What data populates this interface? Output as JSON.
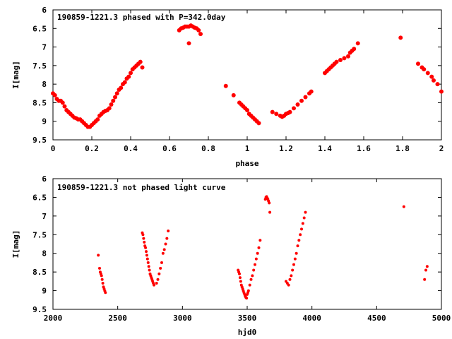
{
  "chart_data": [
    {
      "type": "scatter",
      "title": "190859-1221.3 phased with P=342.0day",
      "xlabel": "phase",
      "ylabel": "I[mag]",
      "xlim": [
        0,
        2
      ],
      "ylim": [
        9.5,
        6
      ],
      "y_inverted": true,
      "grid": false,
      "legend": "none",
      "x_ticks": [
        "0",
        "0.2",
        "0.4",
        "0.6",
        "0.8",
        "1",
        "1.2",
        "1.4",
        "1.6",
        "1.8",
        "2"
      ],
      "y_ticks": [
        "6",
        "6.5",
        "7",
        "7.5",
        "8",
        "8.5",
        "9",
        "9.5"
      ],
      "marker_color": "#ff0000",
      "series": [
        {
          "x": [
            0.0,
            0.01,
            0.02,
            0.03,
            0.04,
            0.05,
            0.06,
            0.07,
            0.08,
            0.09,
            0.1,
            0.11,
            0.12,
            0.13,
            0.14,
            0.15,
            0.16,
            0.17,
            0.18,
            0.19,
            0.2,
            0.21,
            0.22,
            0.23,
            0.24,
            0.25,
            0.26,
            0.27,
            0.28,
            0.29,
            0.3,
            0.31,
            0.32,
            0.33,
            0.34,
            0.35,
            0.36,
            0.37,
            0.38,
            0.39,
            0.4,
            0.41,
            0.42,
            0.43,
            0.44,
            0.45,
            0.46,
            0.65,
            0.66,
            0.67,
            0.68,
            0.69,
            0.7,
            0.71,
            0.72,
            0.73,
            0.74,
            0.75,
            0.76,
            0.7,
            0.89,
            0.93,
            0.96,
            0.97,
            0.98,
            0.99,
            1.0,
            1.01,
            1.02,
            1.03,
            1.04,
            1.05,
            1.06,
            1.13,
            1.15,
            1.17,
            1.18,
            1.19,
            1.2,
            1.21,
            1.22,
            1.24,
            1.26,
            1.28,
            1.3,
            1.32,
            1.33,
            1.4,
            1.41,
            1.42,
            1.43,
            1.44,
            1.45,
            1.46,
            1.48,
            1.5,
            1.52,
            1.53,
            1.54,
            1.55,
            1.57,
            1.79,
            1.88,
            1.9,
            1.91,
            1.93,
            1.95,
            1.96,
            1.98,
            2.0
          ],
          "y": [
            8.25,
            8.3,
            8.4,
            8.45,
            8.45,
            8.5,
            8.6,
            8.7,
            8.75,
            8.8,
            8.85,
            8.9,
            8.92,
            8.95,
            8.95,
            9.0,
            9.05,
            9.1,
            9.15,
            9.15,
            9.1,
            9.05,
            9.0,
            8.95,
            8.85,
            8.8,
            8.75,
            8.72,
            8.7,
            8.65,
            8.55,
            8.45,
            8.35,
            8.25,
            8.15,
            8.1,
            8.0,
            7.95,
            7.85,
            7.8,
            7.7,
            7.6,
            7.55,
            7.5,
            7.45,
            7.4,
            7.55,
            6.55,
            6.5,
            6.48,
            6.45,
            6.45,
            6.45,
            6.42,
            6.45,
            6.48,
            6.5,
            6.55,
            6.65,
            6.9,
            8.05,
            8.3,
            8.5,
            8.55,
            8.6,
            8.65,
            8.7,
            8.8,
            8.85,
            8.9,
            8.95,
            9.0,
            9.05,
            8.75,
            8.8,
            8.85,
            8.88,
            8.85,
            8.8,
            8.78,
            8.75,
            8.65,
            8.55,
            8.45,
            8.35,
            8.25,
            8.2,
            7.7,
            7.65,
            7.6,
            7.55,
            7.5,
            7.45,
            7.4,
            7.35,
            7.3,
            7.25,
            7.15,
            7.1,
            7.05,
            6.9,
            6.75,
            7.45,
            7.55,
            7.6,
            7.7,
            7.8,
            7.9,
            8.0,
            8.2
          ]
        }
      ]
    },
    {
      "type": "scatter",
      "title": "190859-1221.3 not phased light curve",
      "xlabel": "hjd0",
      "ylabel": "I[mag]",
      "xlim": [
        2000,
        5000
      ],
      "ylim": [
        9.5,
        6
      ],
      "y_inverted": true,
      "grid": false,
      "legend": "none",
      "x_ticks": [
        "2000",
        "2500",
        "3000",
        "3500",
        "4000",
        "4500",
        "5000"
      ],
      "y_ticks": [
        "6",
        "6.5",
        "7",
        "7.5",
        "8",
        "8.5",
        "9",
        "9.5"
      ],
      "marker_color": "#ff0000",
      "series": [
        {
          "x": [
            2350,
            2360,
            2365,
            2370,
            2375,
            2380,
            2385,
            2390,
            2395,
            2400,
            2405,
            2690,
            2695,
            2700,
            2705,
            2710,
            2715,
            2720,
            2725,
            2730,
            2735,
            2740,
            2745,
            2750,
            2755,
            2760,
            2765,
            2770,
            2775,
            2780,
            2800,
            2810,
            2820,
            2830,
            2840,
            2850,
            2860,
            2870,
            2880,
            2890,
            3430,
            3435,
            3440,
            3445,
            3450,
            3455,
            3460,
            3465,
            3470,
            3475,
            3480,
            3485,
            3490,
            3495,
            3500,
            3505,
            3510,
            3520,
            3530,
            3540,
            3550,
            3560,
            3570,
            3580,
            3590,
            3600,
            3640,
            3645,
            3650,
            3655,
            3660,
            3665,
            3670,
            3675,
            3800,
            3810,
            3820,
            3830,
            3840,
            3850,
            3860,
            3870,
            3880,
            3890,
            3900,
            3910,
            3920,
            3930,
            3940,
            3950,
            4710,
            4870,
            4880,
            4890
          ],
          "y": [
            8.05,
            8.4,
            8.5,
            8.55,
            8.6,
            8.7,
            8.8,
            8.9,
            8.95,
            9.0,
            9.05,
            7.45,
            7.5,
            7.6,
            7.7,
            7.8,
            7.85,
            7.95,
            8.05,
            8.15,
            8.25,
            8.35,
            8.45,
            8.55,
            8.6,
            8.65,
            8.7,
            8.75,
            8.8,
            8.85,
            8.8,
            8.7,
            8.55,
            8.4,
            8.25,
            8.0,
            7.9,
            7.75,
            7.6,
            7.4,
            8.45,
            8.5,
            8.55,
            8.65,
            8.75,
            8.85,
            8.9,
            8.95,
            9.0,
            9.05,
            9.1,
            9.15,
            9.18,
            9.2,
            9.1,
            9.05,
            9.0,
            8.85,
            8.7,
            8.6,
            8.45,
            8.3,
            8.15,
            8.0,
            7.85,
            7.65,
            6.55,
            6.5,
            6.48,
            6.52,
            6.55,
            6.6,
            6.65,
            6.9,
            8.75,
            8.8,
            8.85,
            8.7,
            8.6,
            8.45,
            8.3,
            8.15,
            8.0,
            7.8,
            7.65,
            7.5,
            7.35,
            7.2,
            7.05,
            6.9,
            6.75,
            8.7,
            8.45,
            8.35
          ]
        }
      ]
    }
  ]
}
